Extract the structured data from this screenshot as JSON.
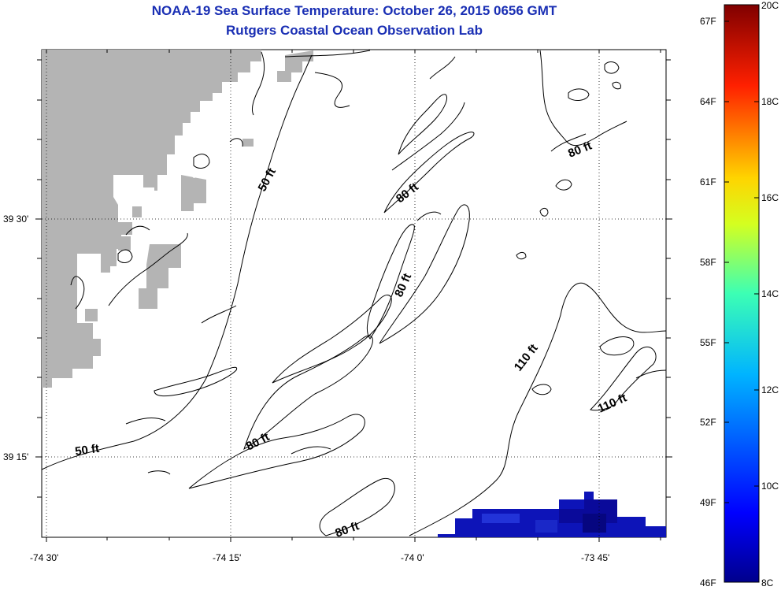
{
  "header": {
    "title": "NOAA-19 Sea Surface Temperature:  October 26, 2015 0656 GMT",
    "subtitle": "Rutgers Coastal Ocean Observation Lab"
  },
  "map": {
    "lon_ticks": [
      "-74 30'",
      "-74 15'",
      "-74 0'",
      "-73 45'"
    ],
    "lat_ticks": [
      "39 30'",
      "39 15'"
    ],
    "contour_labels": [
      "50 ft",
      "50 ft",
      "80 ft",
      "80 ft",
      "80 ft",
      "80 ft",
      "80 ft",
      "110 ft",
      "110 ft"
    ],
    "colors": {
      "land": "#b4b4b4",
      "contour": "#000000",
      "grid": "#000000",
      "title": "#1a2fb4"
    }
  },
  "colorbar": {
    "celsius": [
      "20C",
      "18C",
      "16C",
      "14C",
      "12C",
      "10C",
      "8C"
    ],
    "fahrenheit": [
      "67F",
      "64F",
      "61F",
      "58F",
      "55F",
      "52F",
      "49F",
      "46F"
    ]
  }
}
